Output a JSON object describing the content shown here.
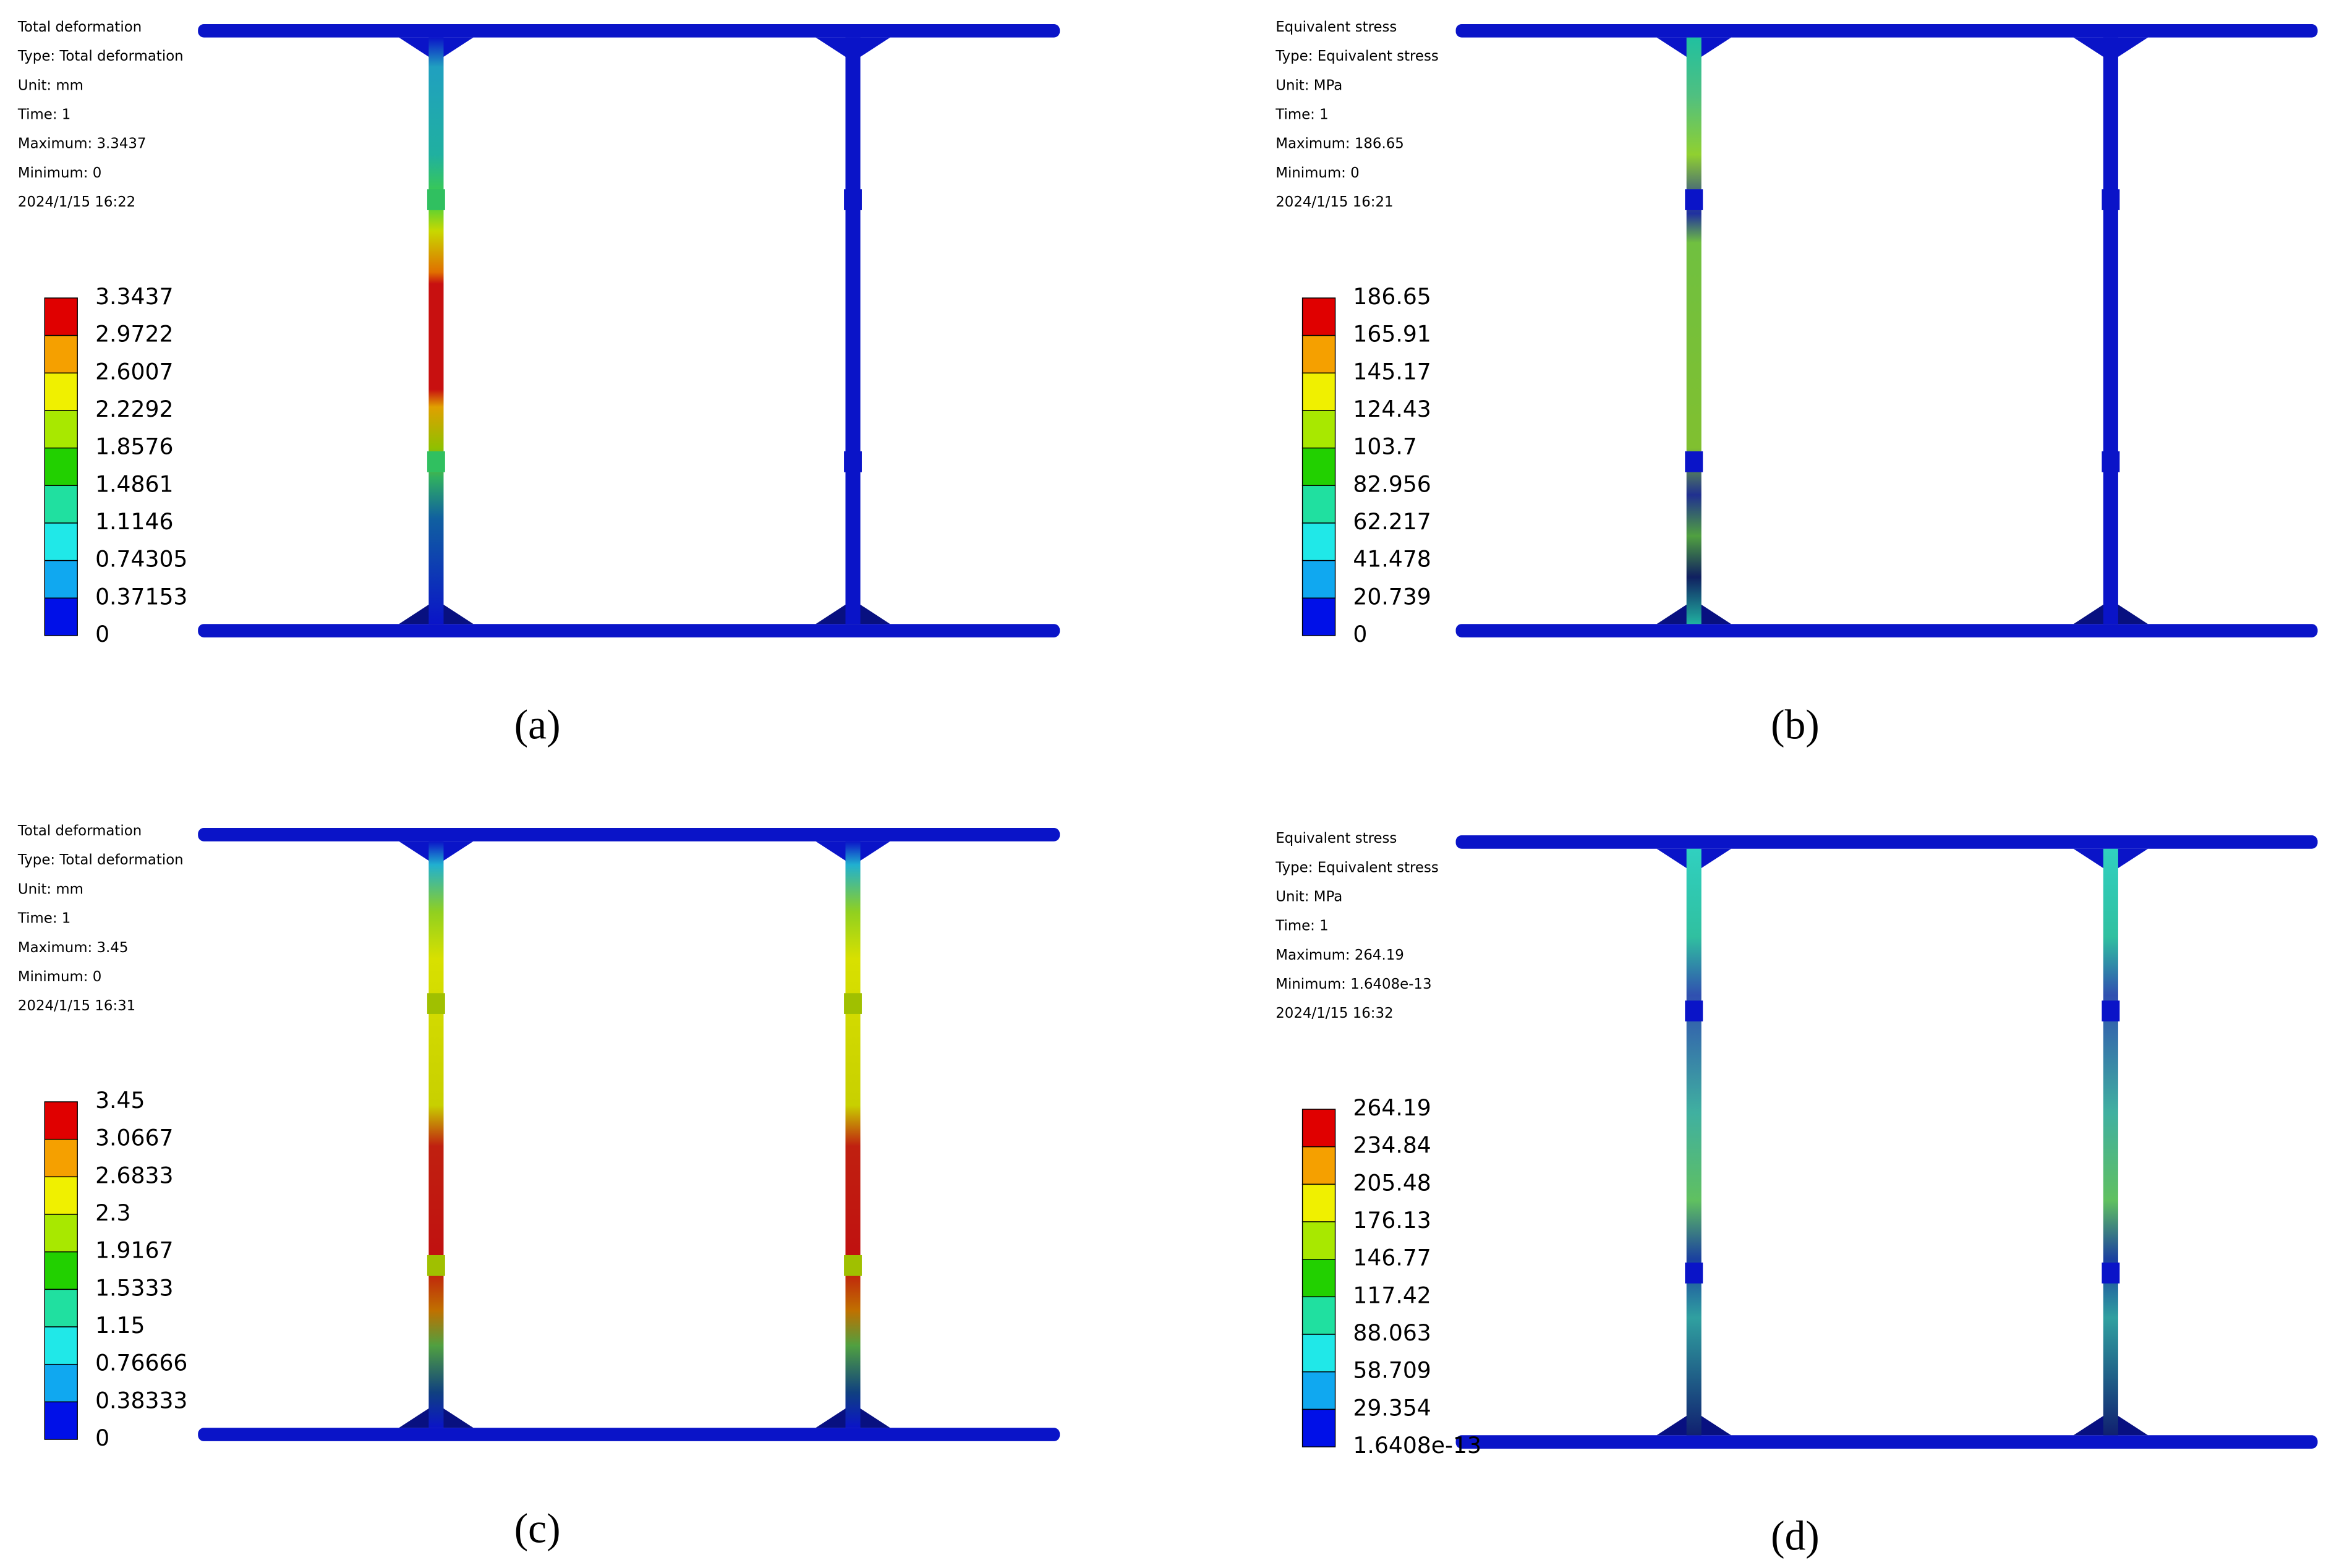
{
  "panels": [
    {
      "caption": "(a)",
      "info": [
        "Total deformation",
        "Type: Total deformation",
        "Unit: mm",
        "Time: 1",
        "Maximum: 3.3437",
        "Minimum: 0",
        "2024/1/15 16:22"
      ],
      "legend": [
        "3.3437",
        "2.9722",
        "2.6007",
        "2.2292",
        "1.8576",
        "1.4861",
        "1.1146",
        "0.74305",
        "0.37153",
        "0"
      ]
    },
    {
      "caption": "(b)",
      "info": [
        "Equivalent stress",
        "Type: Equivalent stress",
        "Unit: MPa",
        "Time: 1",
        "Maximum: 186.65",
        "Minimum: 0",
        "2024/1/15 16:21"
      ],
      "legend": [
        "186.65",
        "165.91",
        "145.17",
        "124.43",
        "103.7",
        "82.956",
        "62.217",
        "41.478",
        "20.739",
        "0"
      ]
    },
    {
      "caption": "(c)",
      "info": [
        "Total deformation",
        "Type: Total deformation",
        "Unit: mm",
        "Time: 1",
        "Maximum: 3.45",
        "Minimum: 0",
        "2024/1/15 16:31"
      ],
      "legend": [
        "3.45",
        "3.0667",
        "2.6833",
        "2.3",
        "1.9167",
        "1.5333",
        "1.15",
        "0.76666",
        "0.38333",
        "0"
      ]
    },
    {
      "caption": "(d)",
      "info": [
        "Equivalent stress",
        "Type: Equivalent stress",
        "Unit: MPa",
        "Time: 1",
        "Maximum: 264.19",
        "Minimum: 1.6408e-13",
        "2024/1/15 16:32"
      ],
      "legend": [
        "264.19",
        "234.84",
        "205.48",
        "176.13",
        "146.77",
        "117.42",
        "88.063",
        "58.709",
        "29.354",
        "1.6408e-13"
      ]
    }
  ]
}
